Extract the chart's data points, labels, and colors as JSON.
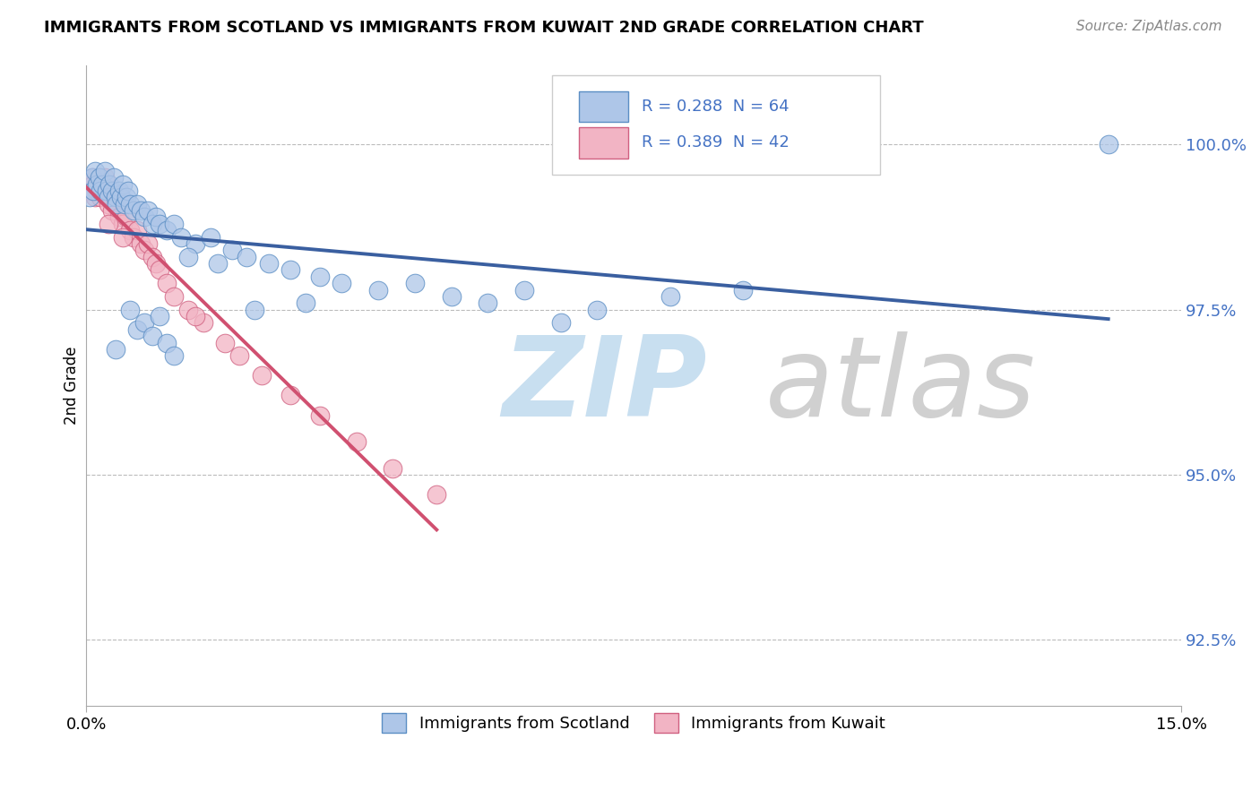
{
  "title": "IMMIGRANTS FROM SCOTLAND VS IMMIGRANTS FROM KUWAIT 2ND GRADE CORRELATION CHART",
  "source": "Source: ZipAtlas.com",
  "ylabel": "2nd Grade",
  "ytick_vals": [
    92.5,
    95.0,
    97.5,
    100.0
  ],
  "xmin": 0.0,
  "xmax": 15.0,
  "ymin": 91.5,
  "ymax": 101.2,
  "legend1_label": "Immigrants from Scotland",
  "legend2_label": "Immigrants from Kuwait",
  "R_scotland": 0.288,
  "N_scotland": 64,
  "R_kuwait": 0.389,
  "N_kuwait": 42,
  "scotland_color": "#aec6e8",
  "kuwait_color": "#f2b4c4",
  "scotland_edge_color": "#5b8ec4",
  "kuwait_edge_color": "#d06080",
  "scotland_line_color": "#3a5fa0",
  "kuwait_line_color": "#d05070",
  "text_color": "#4472c4",
  "scotland_x": [
    0.05,
    0.08,
    0.1,
    0.12,
    0.15,
    0.18,
    0.2,
    0.22,
    0.25,
    0.28,
    0.3,
    0.32,
    0.35,
    0.38,
    0.4,
    0.42,
    0.45,
    0.48,
    0.5,
    0.52,
    0.55,
    0.58,
    0.6,
    0.65,
    0.7,
    0.75,
    0.8,
    0.85,
    0.9,
    0.95,
    1.0,
    1.1,
    1.2,
    1.3,
    1.5,
    1.7,
    2.0,
    2.2,
    2.5,
    2.8,
    3.2,
    3.5,
    4.0,
    4.5,
    5.0,
    5.5,
    6.0,
    7.0,
    8.0,
    9.0,
    1.8,
    2.3,
    1.4,
    0.6,
    0.7,
    0.8,
    0.9,
    1.0,
    1.1,
    1.2,
    3.0,
    6.5,
    14.0,
    0.4
  ],
  "scotland_y": [
    99.2,
    99.5,
    99.3,
    99.6,
    99.4,
    99.5,
    99.3,
    99.4,
    99.6,
    99.3,
    99.2,
    99.4,
    99.3,
    99.5,
    99.2,
    99.1,
    99.3,
    99.2,
    99.4,
    99.1,
    99.2,
    99.3,
    99.1,
    99.0,
    99.1,
    99.0,
    98.9,
    99.0,
    98.8,
    98.9,
    98.8,
    98.7,
    98.8,
    98.6,
    98.5,
    98.6,
    98.4,
    98.3,
    98.2,
    98.1,
    98.0,
    97.9,
    97.8,
    97.9,
    97.7,
    97.6,
    97.8,
    97.5,
    97.7,
    97.8,
    98.2,
    97.5,
    98.3,
    97.5,
    97.2,
    97.3,
    97.1,
    97.4,
    97.0,
    96.8,
    97.6,
    97.3,
    100.0,
    96.9
  ],
  "kuwait_x": [
    0.05,
    0.08,
    0.1,
    0.12,
    0.15,
    0.18,
    0.2,
    0.22,
    0.25,
    0.28,
    0.3,
    0.32,
    0.35,
    0.4,
    0.45,
    0.5,
    0.55,
    0.6,
    0.65,
    0.7,
    0.75,
    0.8,
    0.85,
    0.9,
    0.95,
    1.0,
    1.1,
    1.2,
    1.4,
    1.6,
    1.9,
    2.1,
    2.4,
    2.8,
    3.2,
    3.7,
    4.2,
    4.8,
    0.5,
    0.3,
    1.5,
    0.15
  ],
  "kuwait_y": [
    99.3,
    99.5,
    99.4,
    99.2,
    99.3,
    99.4,
    99.2,
    99.3,
    99.5,
    99.2,
    99.1,
    99.3,
    99.0,
    99.1,
    98.9,
    98.8,
    98.9,
    98.7,
    98.6,
    98.7,
    98.5,
    98.4,
    98.5,
    98.3,
    98.2,
    98.1,
    97.9,
    97.7,
    97.5,
    97.3,
    97.0,
    96.8,
    96.5,
    96.2,
    95.9,
    95.5,
    95.1,
    94.7,
    98.6,
    98.8,
    97.4,
    99.4
  ]
}
